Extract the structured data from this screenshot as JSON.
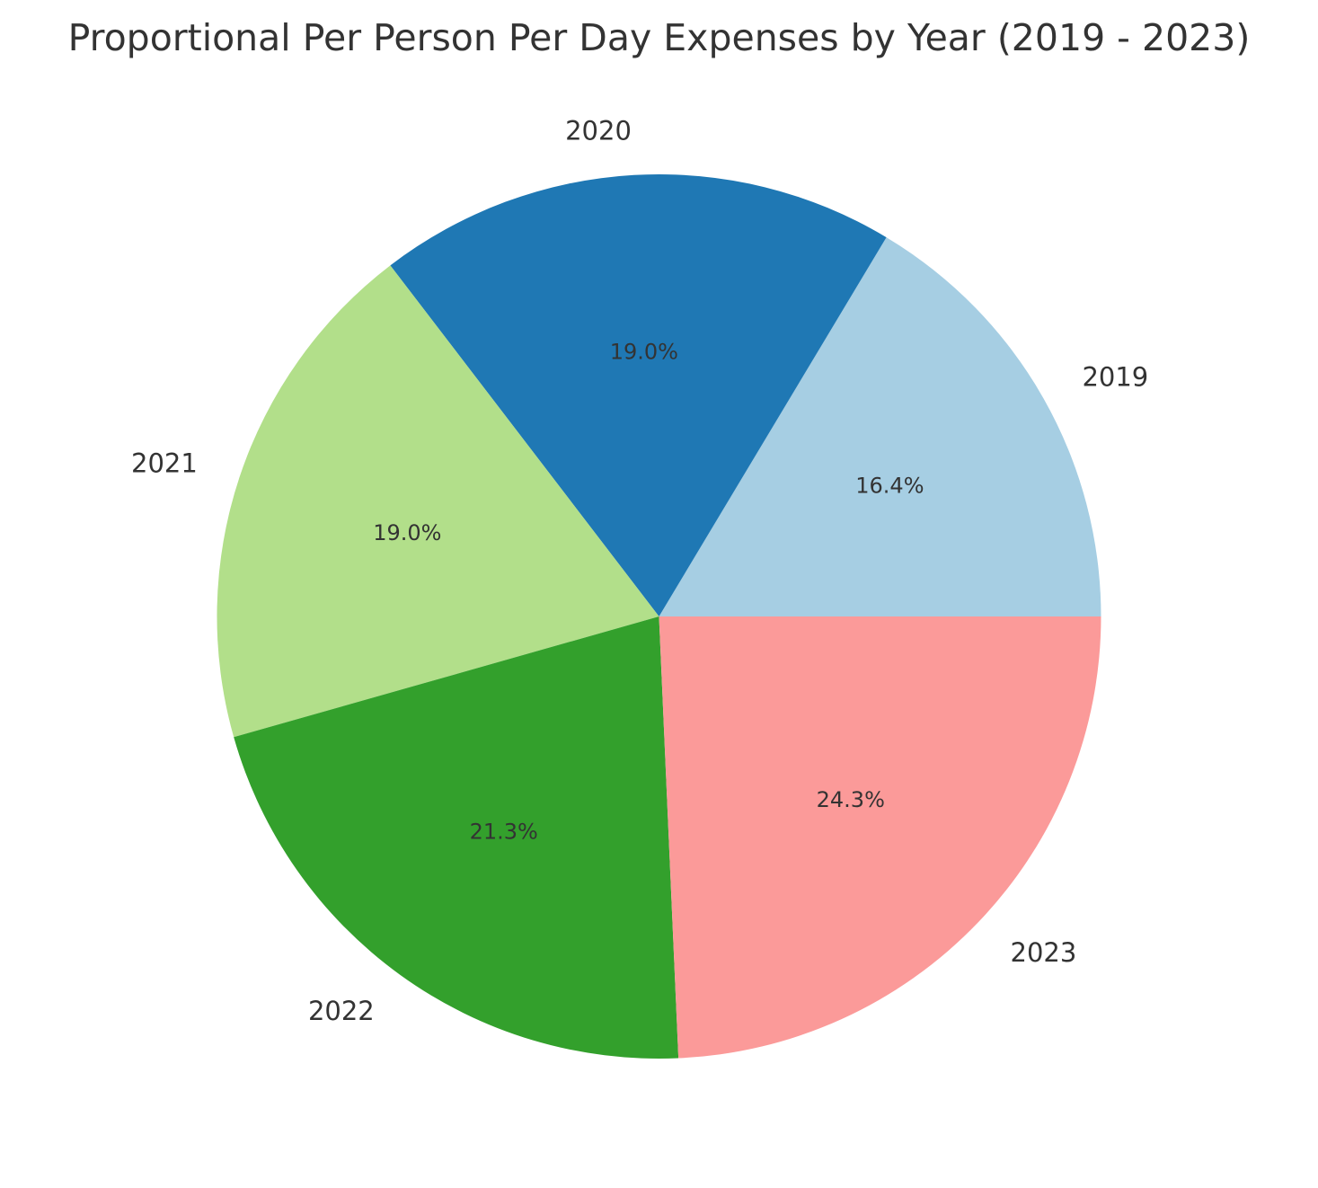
{
  "chart_data": {
    "type": "pie",
    "title": "Proportional Per Person Per Day Expenses by Year (2019 - 2023)",
    "labels": [
      "2019",
      "2020",
      "2021",
      "2022",
      "2023"
    ],
    "values": [
      16.4,
      19.0,
      19.0,
      21.3,
      24.3
    ],
    "value_labels": [
      "16.4%",
      "19.0%",
      "19.0%",
      "21.3%",
      "24.3%"
    ],
    "colors": [
      "#a6cee3",
      "#1f78b4",
      "#b2df8a",
      "#33a02c",
      "#fb9a99"
    ],
    "start_angle_deg": 0,
    "direction": "counterclockwise",
    "legend": "none"
  }
}
